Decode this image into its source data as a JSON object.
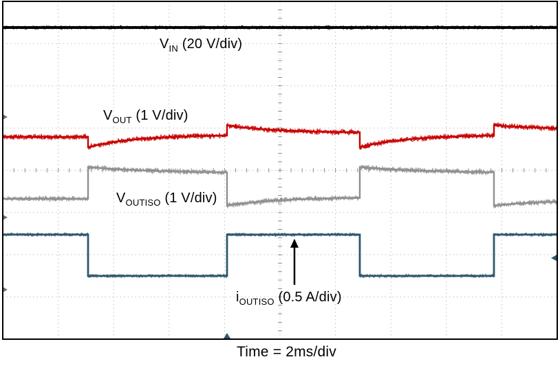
{
  "labels": {
    "vin": {
      "base": "V",
      "sub": "IN",
      "rest": " (20 V/div)"
    },
    "vout": {
      "base": "V",
      "sub": "OUT",
      "rest": " (1 V/div)"
    },
    "voutiso": {
      "base": "V",
      "sub": "OUTISO",
      "rest": " (1 V/div)"
    },
    "ioutiso": {
      "base": "i",
      "sub": "OUTISO",
      "rest": " (0.5 A/div)"
    },
    "time_label": "Time = 2ms/div"
  },
  "chart_data": {
    "type": "line",
    "subtype": "oscilloscope-load-transient",
    "title": "",
    "horizontal_scale": "2 ms/div",
    "x_window_ms": 20,
    "divisions": {
      "x": 10,
      "y": 8
    },
    "grid": {
      "style": "dotted",
      "center_axes_ticked": true
    },
    "annotation": "black up-arrow pointing at i_OUTISO high level near screen center",
    "series": [
      {
        "name": "V_IN",
        "vertical_scale": "20 V/div",
        "color": "#000000",
        "waveform": "flat DC line near top of screen, no response to load steps"
      },
      {
        "name": "V_OUT",
        "vertical_scale": "1 V/div",
        "color": "#c80000",
        "waveform": "regulated output; small undershoot with slow recovery when load steps low, small overshoot with slow decay when load steps high",
        "transient_edges_ms": [
          3.1,
          8.1,
          12.9,
          17.7
        ]
      },
      {
        "name": "V_OUTISO",
        "vertical_scale": "1 V/div",
        "color": "#8f8f8f",
        "waveform": "isolated output; rises when load current steps low, droops when load current steps high (inverse of V_OUT transients)",
        "transient_edges_ms": [
          3.1,
          8.1,
          12.9,
          17.7
        ]
      },
      {
        "name": "i_OUTISO",
        "vertical_scale": "0.5 A/div",
        "color": "#2e576c",
        "waveform": "square-wave load-current steps, starts high",
        "step_edges_ms": [
          3.1,
          8.1,
          12.9,
          17.7
        ],
        "high_first": true,
        "period_ms": 10
      }
    ],
    "render": {
      "box": {
        "x0": 4,
        "y0": 2,
        "x1": 810,
        "y1": 493
      },
      "grid_color": "#c0c0c0",
      "tick_color": "#8c8c8c",
      "series": [
        {
          "id": "vin",
          "color": "#000000",
          "core": 4.0,
          "noise": 2.8,
          "passes": 3,
          "segments": [
            {
              "x0": 4,
              "x1": 810,
              "y0": 40,
              "y1": 40,
              "tau": 0
            }
          ]
        },
        {
          "id": "vout",
          "color": "#c80000",
          "core": 2.4,
          "noise": 4.3,
          "passes": 3,
          "segments": [
            {
              "x0": 4,
              "x1": 128,
              "y0": 199,
              "y1": 199,
              "tau": 0
            },
            {
              "x0": 128,
              "x1": 330,
              "y0": 214,
              "y1": 196,
              "tau": 70
            },
            {
              "x0": 330,
              "x1": 523,
              "y0": 182,
              "y1": 193,
              "tau": 70
            },
            {
              "x0": 523,
              "x1": 718,
              "y0": 214,
              "y1": 196,
              "tau": 70
            },
            {
              "x0": 718,
              "x1": 810,
              "y0": 182,
              "y1": 188,
              "tau": 70
            }
          ]
        },
        {
          "id": "voutiso",
          "color": "#8f8f8f",
          "core": 2.4,
          "noise": 4.1,
          "passes": 3,
          "segments": [
            {
              "x0": 4,
              "x1": 128,
              "y0": 289,
              "y1": 289,
              "tau": 0
            },
            {
              "x0": 128,
              "x1": 330,
              "y0": 243,
              "y1": 252,
              "tau": 110
            },
            {
              "x0": 330,
              "x1": 523,
              "y0": 299,
              "y1": 287,
              "tau": 70
            },
            {
              "x0": 523,
              "x1": 718,
              "y0": 243,
              "y1": 252,
              "tau": 110
            },
            {
              "x0": 718,
              "x1": 810,
              "y0": 299,
              "y1": 291,
              "tau": 70
            }
          ]
        },
        {
          "id": "ioutiso",
          "color": "#2e576c",
          "core": 2.8,
          "noise": 2.6,
          "passes": 3,
          "segments": [
            {
              "x0": 4,
              "x1": 128,
              "y0": 341,
              "y1": 341,
              "tau": 0
            },
            {
              "x0": 128,
              "x1": 330,
              "y0": 401,
              "y1": 401,
              "tau": 0
            },
            {
              "x0": 330,
              "x1": 523,
              "y0": 341,
              "y1": 341,
              "tau": 0
            },
            {
              "x0": 523,
              "x1": 718,
              "y0": 401,
              "y1": 401,
              "tau": 0
            },
            {
              "x0": 718,
              "x1": 810,
              "y0": 341,
              "y1": 341,
              "tau": 0
            }
          ]
        }
      ],
      "markers": {
        "left": [
          {
            "y": 170
          },
          {
            "y": 316
          },
          {
            "y": 421
          }
        ],
        "right_trigger_y": 375,
        "bottom_trigger_x": 330,
        "trigger_color": "#2e576c",
        "left_color": "#707070"
      },
      "arrow": {
        "x": 428,
        "y_tail": 414,
        "y_head": 347
      }
    }
  }
}
